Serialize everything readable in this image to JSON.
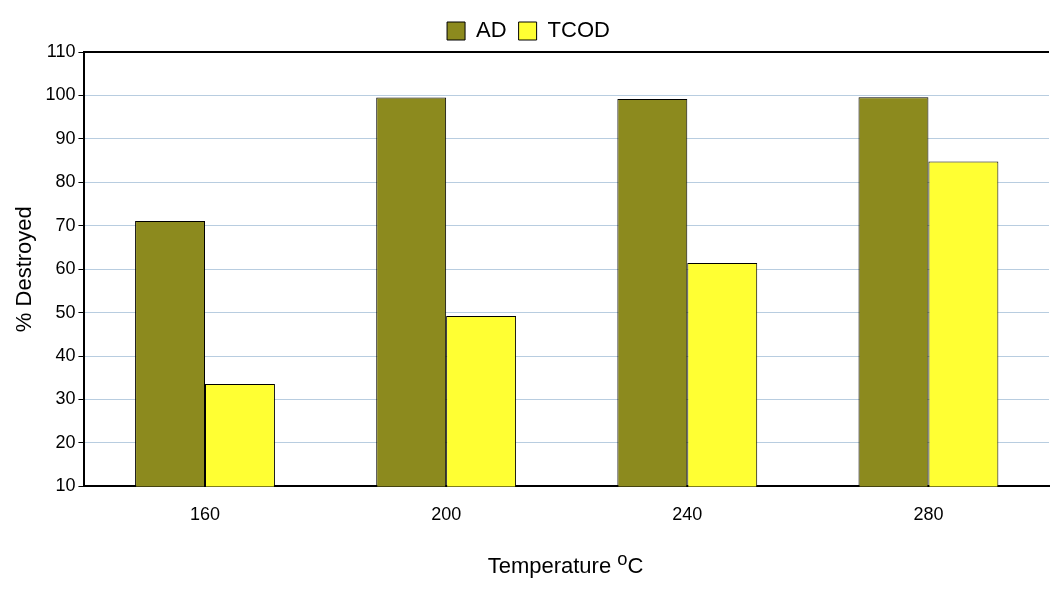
{
  "chart_data": {
    "type": "bar",
    "xlabel": "Temperature $^{o}$C",
    "ylabel": "% Destroyed",
    "categories": [
      "160",
      "200",
      "240",
      "280"
    ],
    "series": [
      {
        "name": "AD",
        "color": "#8c8a1e",
        "values": [
          71.1,
          99.5,
          99.2,
          99.6
        ]
      },
      {
        "name": "TCOD",
        "color": "#ffff33",
        "values": [
          33.6,
          49.2,
          61.4,
          84.8
        ]
      }
    ],
    "ylim": [
      10,
      110
    ],
    "yticks": [
      10,
      20,
      30,
      40,
      50,
      60,
      70,
      80,
      90,
      100,
      110
    ],
    "grid": "y",
    "legend": "top"
  }
}
